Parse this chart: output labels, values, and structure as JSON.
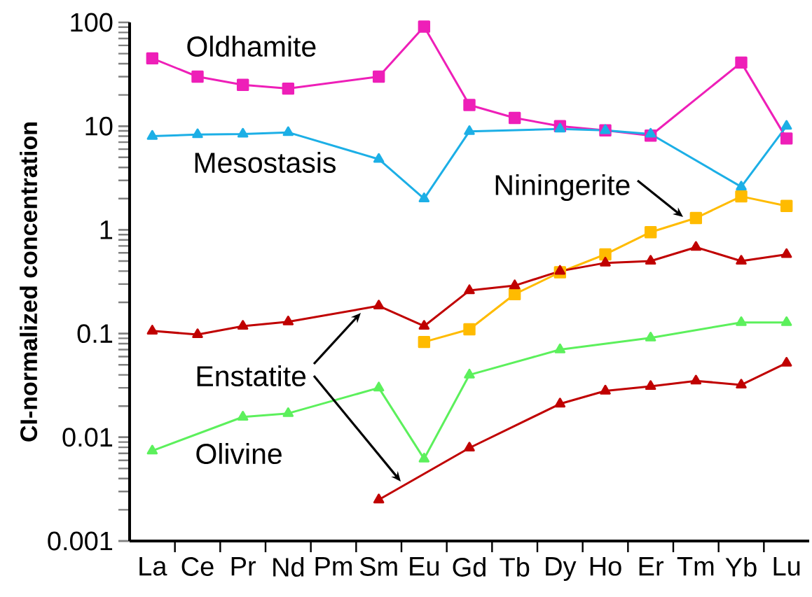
{
  "chart_data": {
    "type": "line",
    "ylabel": "CI-normalized concentration",
    "categories": [
      "La",
      "Ce",
      "Pr",
      "Nd",
      "Pm",
      "Sm",
      "Eu",
      "Gd",
      "Tb",
      "Dy",
      "Ho",
      "Er",
      "Tm",
      "Yb",
      "Lu"
    ],
    "log": "y",
    "ylim": [
      0.001,
      100
    ],
    "yticks": [
      0.001,
      0.01,
      0.1,
      1,
      10,
      100
    ],
    "series": [
      {
        "name": "Oldhamite",
        "color": "#ee1fb8",
        "marker": "square",
        "values": [
          45,
          30,
          25,
          23,
          null,
          30,
          91,
          16,
          12,
          10,
          9.1,
          8.1,
          null,
          41,
          7.6
        ]
      },
      {
        "name": "Mesostasis",
        "color": "#1cafe6",
        "marker": "triangle",
        "values": [
          8.0,
          8.3,
          8.4,
          8.7,
          null,
          4.8,
          2.0,
          8.9,
          null,
          9.4,
          9.1,
          8.4,
          null,
          2.6,
          10
        ]
      },
      {
        "name": "Niningerite",
        "color": "#ffbb00",
        "marker": "square",
        "values": [
          null,
          null,
          null,
          null,
          null,
          null,
          0.083,
          0.11,
          0.24,
          0.39,
          0.58,
          0.95,
          1.3,
          2.1,
          1.7
        ]
      },
      {
        "name": "Enstatite",
        "color": "#c00000",
        "marker": "triangle",
        "values": [
          0.106,
          0.098,
          0.118,
          0.13,
          null,
          0.185,
          0.118,
          0.26,
          0.29,
          0.4,
          0.48,
          0.5,
          0.68,
          0.5,
          0.58
        ]
      },
      {
        "name": "Olivine",
        "color": "#5cf05c",
        "marker": "triangle",
        "values": [
          0.0074,
          null,
          0.0157,
          0.017,
          null,
          0.03,
          0.0062,
          0.04,
          null,
          0.07,
          null,
          0.091,
          null,
          0.128,
          0.128
        ]
      },
      {
        "color": "#c00000",
        "marker": "triangle",
        "values": [
          null,
          null,
          null,
          null,
          null,
          0.0025,
          null,
          0.0079,
          null,
          0.021,
          0.028,
          0.031,
          0.035,
          0.032,
          0.052
        ]
      }
    ]
  }
}
